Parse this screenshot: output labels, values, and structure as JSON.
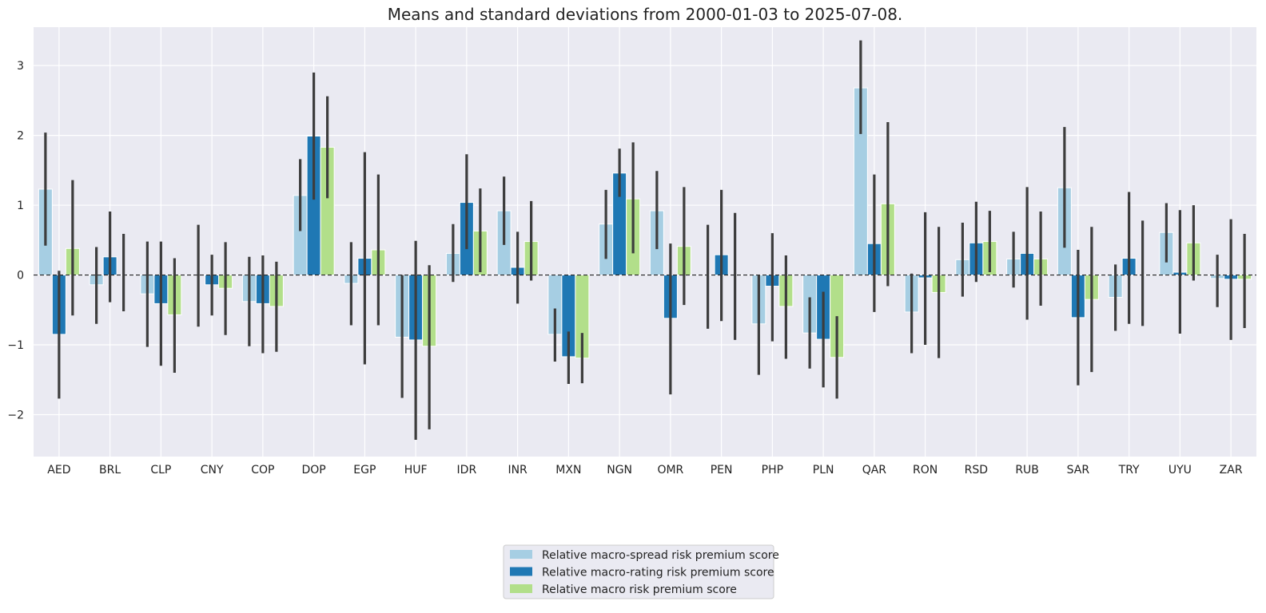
{
  "chart_data": {
    "type": "bar",
    "title": "Means and standard deviations from 2000-01-03 to 2025-07-08.",
    "xlabel": "",
    "ylabel": "",
    "ylim": [
      -2.6,
      3.55
    ],
    "yticks": [
      -2,
      -1,
      0,
      1,
      2,
      3
    ],
    "ytick_labels": [
      "−2",
      "−1",
      "0",
      "1",
      "2",
      "3"
    ],
    "grid": true,
    "legend_position": "bottom-center",
    "categories": [
      "AED",
      "BRL",
      "CLP",
      "CNY",
      "COP",
      "DOP",
      "EGP",
      "HUF",
      "IDR",
      "INR",
      "MXN",
      "NGN",
      "OMR",
      "PEN",
      "PHP",
      "PLN",
      "QAR",
      "RON",
      "RSD",
      "RUB",
      "SAR",
      "TRY",
      "UYU",
      "ZAR"
    ],
    "series": [
      {
        "name": "Relative macro-spread risk premium score",
        "color": "#a6cee3",
        "values": [
          1.23,
          -0.14,
          -0.27,
          0.0,
          -0.38,
          1.14,
          -0.12,
          -0.89,
          0.31,
          0.92,
          -0.85,
          0.73,
          0.92,
          0.0,
          -0.7,
          -0.83,
          2.68,
          -0.53,
          0.22,
          0.23,
          1.25,
          -0.32,
          0.61,
          -0.05
        ],
        "err_low": [
          0.42,
          -0.7,
          -1.03,
          -0.74,
          -1.02,
          0.63,
          -0.72,
          -1.76,
          -0.1,
          0.43,
          -1.24,
          0.23,
          0.37,
          -0.77,
          -1.43,
          -1.34,
          2.02,
          -1.12,
          -0.31,
          -0.18,
          0.39,
          -0.8,
          0.18,
          -0.46
        ],
        "err_high": [
          2.04,
          0.4,
          0.48,
          0.72,
          0.26,
          1.66,
          0.47,
          0.0,
          0.73,
          1.41,
          -0.48,
          1.22,
          1.49,
          0.72,
          0.0,
          -0.32,
          3.36,
          0.02,
          0.75,
          0.62,
          2.12,
          0.15,
          1.03,
          0.29
        ]
      },
      {
        "name": "Relative macro-rating risk premium score",
        "color": "#1f78b4",
        "values": [
          -0.85,
          0.26,
          -0.41,
          -0.14,
          -0.41,
          1.99,
          0.24,
          -0.93,
          1.04,
          0.11,
          -1.17,
          1.46,
          -0.62,
          0.29,
          -0.16,
          -0.92,
          0.45,
          -0.04,
          0.46,
          0.31,
          -0.61,
          0.24,
          0.04,
          -0.06
        ],
        "err_low": [
          -1.77,
          -0.39,
          -1.3,
          -0.58,
          -1.12,
          1.08,
          -1.28,
          -2.36,
          0.37,
          -0.41,
          -1.56,
          1.12,
          -1.71,
          -0.66,
          -0.95,
          -1.61,
          -0.53,
          -1.0,
          -0.1,
          -0.64,
          -1.58,
          -0.7,
          -0.84,
          -0.93
        ],
        "err_high": [
          0.06,
          0.91,
          0.48,
          0.29,
          0.28,
          2.9,
          1.76,
          0.49,
          1.73,
          0.62,
          -0.81,
          1.81,
          0.45,
          1.22,
          0.6,
          -0.24,
          1.44,
          0.9,
          1.05,
          1.26,
          0.36,
          1.19,
          0.93,
          0.8
        ]
      },
      {
        "name": "Relative macro risk premium score",
        "color": "#b2df8a",
        "values": [
          0.38,
          0.0,
          -0.57,
          -0.19,
          -0.45,
          1.83,
          0.36,
          -1.02,
          0.63,
          0.48,
          -1.19,
          1.09,
          0.41,
          0.0,
          -0.45,
          -1.18,
          1.02,
          -0.25,
          0.48,
          0.23,
          -0.35,
          0.0,
          0.46,
          -0.06
        ],
        "err_low": [
          -0.58,
          -0.52,
          -1.4,
          -0.86,
          -1.1,
          1.1,
          -0.72,
          -2.21,
          0.04,
          -0.08,
          -1.55,
          0.31,
          -0.43,
          -0.93,
          -1.2,
          -1.77,
          -0.16,
          -1.19,
          0.04,
          -0.44,
          -1.39,
          -0.73,
          -0.08,
          -0.76
        ],
        "err_high": [
          1.36,
          0.59,
          0.24,
          0.47,
          0.19,
          2.56,
          1.44,
          0.14,
          1.24,
          1.06,
          -0.83,
          1.9,
          1.26,
          0.89,
          0.28,
          -0.59,
          2.19,
          0.69,
          0.92,
          0.91,
          0.69,
          0.78,
          1.0,
          0.59
        ]
      }
    ]
  }
}
